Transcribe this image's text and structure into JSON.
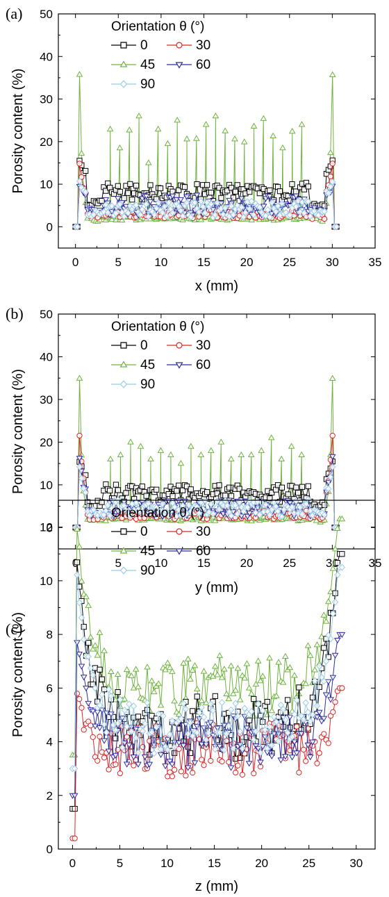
{
  "legend_title": "Orientation θ (°)",
  "colors": {
    "0": "#000000",
    "30": "#d62728",
    "45": "#6fb33f",
    "60": "#2c2c9e",
    "90": "#9ccbe6"
  },
  "markers": {
    "0": "square",
    "30": "circle",
    "45": "triangle-up",
    "60": "triangle-down",
    "90": "diamond"
  },
  "chart_data": [
    {
      "type": "line",
      "panel": "(a)",
      "xlabel": "x (mm)",
      "ylabel": "Porosity content (%)",
      "xlim": [
        -2,
        35
      ],
      "ylim": [
        -5,
        50
      ],
      "xticks": [
        0,
        5,
        10,
        15,
        20,
        25,
        30,
        35
      ],
      "yticks": [
        0,
        10,
        20,
        30,
        40,
        50
      ],
      "grid": false,
      "legend_position": "top-left",
      "x_range_data": [
        0,
        30.5
      ],
      "series": [
        {
          "name": "0",
          "key": "0",
          "base": 8,
          "amp": 2,
          "edge": 16,
          "edge_w": 1.2,
          "spikes": [],
          "zero_ends": true
        },
        {
          "name": "30",
          "key": "30",
          "base": 3,
          "amp": 1,
          "edge": 16,
          "edge_w": 0.8,
          "spikes": [],
          "zero_ends": true
        },
        {
          "name": "45",
          "key": "45",
          "base": 2,
          "amp": 0.5,
          "edge": 45,
          "edge_w": 0.3,
          "spikes": [
            22.9,
            18.5,
            22.7,
            26,
            15,
            22.9,
            19.5,
            25,
            20.6,
            20.7,
            24,
            26,
            22.5,
            20.6,
            19.9,
            23.6,
            25.4,
            21.3,
            18.5,
            22.4,
            24
          ],
          "zero_ends": true
        },
        {
          "name": "60",
          "key": "60",
          "base": 5,
          "amp": 2.5,
          "edge": 10,
          "edge_w": 1.0,
          "spikes": [],
          "zero_ends": true
        },
        {
          "name": "90",
          "key": "90",
          "base": 4,
          "amp": 2,
          "edge": 11,
          "edge_w": 1.2,
          "spikes": [],
          "zero_ends": true
        }
      ]
    },
    {
      "type": "line",
      "panel": "(b)",
      "xlabel": "y (mm)",
      "ylabel": "Porosity content (%)",
      "xlim": [
        -2,
        35
      ],
      "ylim": [
        -5,
        50
      ],
      "xticks": [
        0,
        5,
        10,
        15,
        20,
        25,
        30,
        35
      ],
      "yticks": [
        0,
        10,
        20,
        30,
        40,
        50
      ],
      "grid": false,
      "legend_position": "top-left",
      "x_range_data": [
        0,
        30.5
      ],
      "series": [
        {
          "name": "0",
          "key": "0",
          "base": 8,
          "amp": 2,
          "edge": 16,
          "edge_w": 1.0,
          "spikes": [],
          "zero_ends": true
        },
        {
          "name": "30",
          "key": "30",
          "base": 3,
          "amp": 1,
          "edge": 24,
          "edge_w": 0.6,
          "spikes": [],
          "zero_ends": true
        },
        {
          "name": "45",
          "key": "45",
          "base": 2,
          "amp": 0.5,
          "edge": 44,
          "edge_w": 0.3,
          "spikes": [
            16,
            17,
            20,
            19,
            16,
            18,
            17,
            15,
            19,
            17,
            18,
            20,
            16,
            17,
            17,
            18,
            21,
            16,
            19,
            17
          ],
          "zero_ends": true
        },
        {
          "name": "60",
          "key": "60",
          "base": 4.5,
          "amp": 2,
          "edge": 18,
          "edge_w": 0.6,
          "spikes": [],
          "zero_ends": true
        },
        {
          "name": "90",
          "key": "90",
          "base": 4.5,
          "amp": 2,
          "edge": 15,
          "edge_w": 0.8,
          "spikes": [],
          "zero_ends": true
        }
      ]
    },
    {
      "type": "line",
      "panel": "(c)",
      "xlabel": "z (mm)",
      "ylabel": "Porosity content (%)",
      "xlim": [
        -1.5,
        32
      ],
      "ylim": [
        0,
        13
      ],
      "xticks": [
        0,
        5,
        10,
        15,
        20,
        25,
        30
      ],
      "yticks": [
        0,
        2,
        4,
        6,
        8,
        10,
        12
      ],
      "grid": false,
      "legend_position": "top-left",
      "x_range_data": [
        0,
        28.5
      ],
      "series": [
        {
          "name": "0",
          "key": "0",
          "base": 4.5,
          "amp": 1.2,
          "edge": 11,
          "edge_w": 1.5,
          "spikes": [],
          "zero_ends": false,
          "start": 1.5
        },
        {
          "name": "30",
          "key": "30",
          "base": 3.7,
          "amp": 1.0,
          "edge": 6,
          "edge_w": 1.0,
          "spikes": [],
          "zero_ends": false,
          "start": 0.4
        },
        {
          "name": "45",
          "key": "45",
          "base": 6,
          "amp": 1.2,
          "edge": 12.3,
          "edge_w": 1.5,
          "spikes": [],
          "zero_ends": false,
          "start": 3.5
        },
        {
          "name": "60",
          "key": "60",
          "base": 4.0,
          "amp": 1.0,
          "edge": 8,
          "edge_w": 1.2,
          "spikes": [],
          "zero_ends": false,
          "start": 2.0
        },
        {
          "name": "90",
          "key": "90",
          "base": 4.5,
          "amp": 1.0,
          "edge": 10.5,
          "edge_w": 1.5,
          "spikes": [],
          "zero_ends": false,
          "start": 3.0
        }
      ]
    }
  ]
}
